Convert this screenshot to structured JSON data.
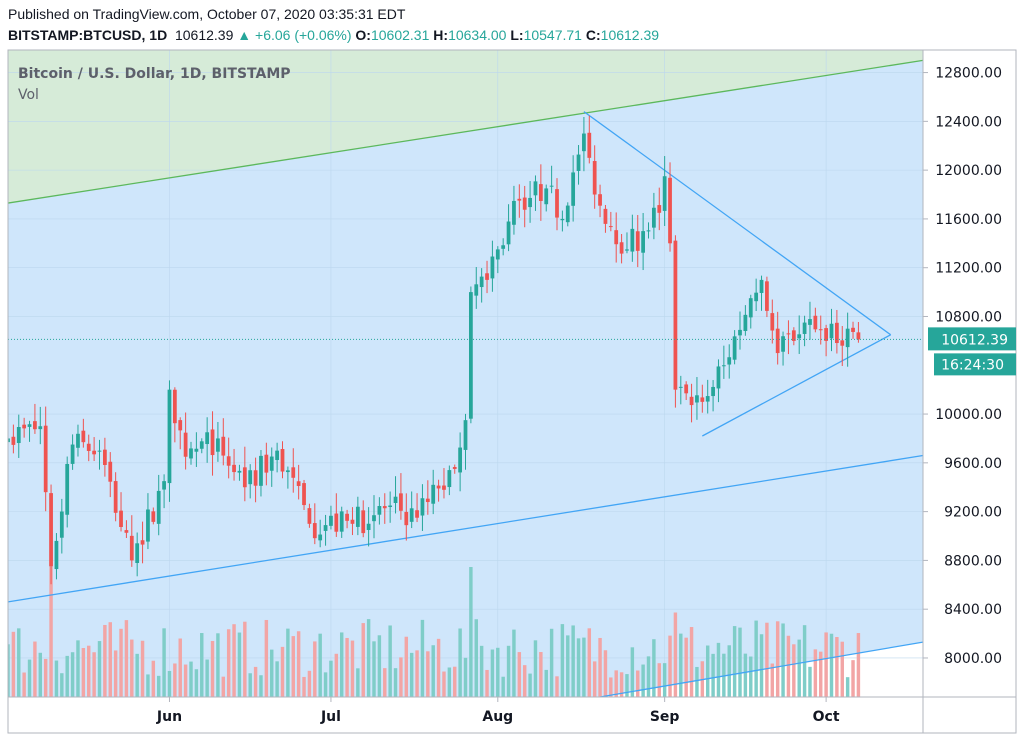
{
  "header": {
    "published": "Published on TradingView.com, October 07, 2020 03:35:31 EDT",
    "symbol": "BITSTAMP:BTCUSD, 1D",
    "last": "10612.39",
    "change": "+6.06 (+0.06%)",
    "open_label": "O:",
    "open": "10602.31",
    "high_label": "H:",
    "high": "10634.00",
    "low_label": "L:",
    "low": "10547.71",
    "close_label": "C:",
    "close": "10612.39"
  },
  "legend": {
    "title": "Bitcoin / U.S. Dollar, 1D, BITSTAMP",
    "vol": "Vol"
  },
  "colors": {
    "up": "#26a69a",
    "down": "#ef5350",
    "upVol": "#7fcdc8",
    "downVol": "#f2a5a5",
    "channel": "#cfe6fb",
    "upperZone": "#d6ebd8",
    "blueLine": "#42a5f5",
    "greenLine": "#5cb85c",
    "priceTag": "#26a69a"
  },
  "price_tag": {
    "value": "10612.39",
    "countdown": "16:24:30"
  },
  "chart_data": {
    "type": "candlestick",
    "title": "Bitcoin / U.S. Dollar, 1D, BITSTAMP",
    "y_ticks": [
      "12800.00",
      "12400.00",
      "12000.00",
      "11600.00",
      "11200.00",
      "10800.00",
      "10000.00",
      "9600.00",
      "9200.00",
      "8800.00",
      "8400.00",
      "8000.00"
    ],
    "ylim": [
      7680,
      12985
    ],
    "x_ticks": [
      {
        "label": "Jun",
        "date": "2020-06-01"
      },
      {
        "label": "Jul",
        "date": "2020-07-01"
      },
      {
        "label": "Aug",
        "date": "2020-08-01"
      },
      {
        "label": "Sep",
        "date": "2020-09-01"
      },
      {
        "label": "Oct",
        "date": "2020-10-01"
      }
    ],
    "xlim": [
      "2020-05-02",
      "2020-10-19"
    ],
    "anchors": [
      {
        "date": "2020-05-02",
        "close": 9800
      },
      {
        "date": "2020-05-08",
        "close": 9900
      },
      {
        "date": "2020-05-10",
        "close": 8750
      },
      {
        "date": "2020-05-14",
        "close": 9750
      },
      {
        "date": "2020-05-19",
        "close": 9700
      },
      {
        "date": "2020-05-25",
        "close": 8800
      },
      {
        "date": "2020-05-31",
        "close": 9450
      },
      {
        "date": "2020-06-01",
        "close": 10200
      },
      {
        "date": "2020-06-04",
        "close": 9650
      },
      {
        "date": "2020-06-10",
        "close": 9800
      },
      {
        "date": "2020-06-15",
        "close": 9400
      },
      {
        "date": "2020-06-21",
        "close": 9700
      },
      {
        "date": "2020-06-27",
        "close": 9100
      },
      {
        "date": "2020-07-05",
        "close": 9100
      },
      {
        "date": "2020-07-12",
        "close": 9250
      },
      {
        "date": "2020-07-17",
        "close": 9150
      },
      {
        "date": "2020-07-21",
        "close": 9390
      },
      {
        "date": "2020-07-24",
        "close": 9550
      },
      {
        "date": "2020-07-26",
        "close": 9950
      },
      {
        "date": "2020-07-27",
        "close": 11000
      },
      {
        "date": "2020-07-30",
        "close": 11100
      },
      {
        "date": "2020-08-01",
        "close": 11350
      },
      {
        "date": "2020-08-05",
        "close": 11750
      },
      {
        "date": "2020-08-10",
        "close": 11850
      },
      {
        "date": "2020-08-13",
        "close": 11600
      },
      {
        "date": "2020-08-17",
        "close": 12300
      },
      {
        "date": "2020-08-19",
        "close": 11800
      },
      {
        "date": "2020-08-25",
        "close": 11350
      },
      {
        "date": "2020-08-28",
        "close": 11500
      },
      {
        "date": "2020-08-31",
        "close": 11650
      },
      {
        "date": "2020-09-01",
        "close": 11950
      },
      {
        "date": "2020-09-02",
        "close": 11400
      },
      {
        "date": "2020-09-03",
        "close": 10200
      },
      {
        "date": "2020-09-05",
        "close": 10170
      },
      {
        "date": "2020-09-08",
        "close": 10100
      },
      {
        "date": "2020-09-12",
        "close": 10400
      },
      {
        "date": "2020-09-17",
        "close": 10950
      },
      {
        "date": "2020-09-19",
        "close": 11100
      },
      {
        "date": "2020-09-22",
        "close": 10500
      },
      {
        "date": "2020-09-27",
        "close": 10750
      },
      {
        "date": "2020-10-01",
        "close": 10600
      },
      {
        "date": "2020-10-05",
        "close": 10700
      },
      {
        "date": "2020-10-07",
        "close": 10612
      }
    ],
    "volume_spikes": [
      {
        "date": "2020-05-10",
        "relative": 1.0
      },
      {
        "date": "2020-07-27",
        "relative": 1.0
      },
      {
        "date": "2020-09-03",
        "relative": 0.65
      }
    ],
    "trendlines": [
      {
        "name": "upper channel",
        "from": {
          "date": "2020-05-02",
          "price": 11730
        },
        "to": {
          "date": "2020-10-19",
          "price": 12900
        },
        "color": "green"
      },
      {
        "name": "lower channel",
        "from": {
          "date": "2020-05-02",
          "price": 8460
        },
        "to": {
          "date": "2020-10-19",
          "price": 9660
        },
        "color": "blue"
      },
      {
        "name": "triangle top",
        "from": {
          "date": "2020-08-17",
          "price": 12480
        },
        "to": {
          "date": "2020-10-13",
          "price": 10650
        },
        "color": "blue"
      },
      {
        "name": "triangle bottom",
        "from": {
          "date": "2020-09-08",
          "price": 9820
        },
        "to": {
          "date": "2020-10-13",
          "price": 10650
        },
        "color": "blue"
      },
      {
        "name": "parallel lower",
        "from": {
          "date": "2020-08-20",
          "price": 7680
        },
        "to": {
          "date": "2020-10-19",
          "price": 8130
        },
        "color": "blue"
      }
    ]
  }
}
